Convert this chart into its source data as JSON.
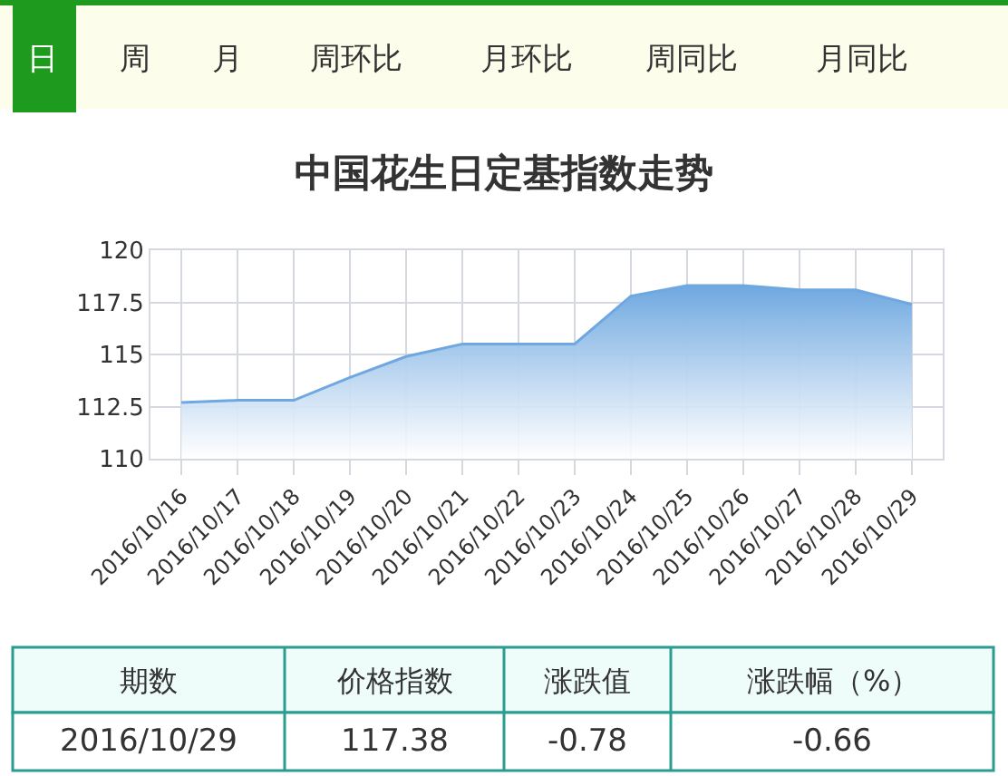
{
  "chart_data": {
    "type": "area",
    "title": "中国花生日定基指数走势",
    "categories": [
      "2016/10/16",
      "2016/10/17",
      "2016/10/18",
      "2016/10/19",
      "2016/10/20",
      "2016/10/21",
      "2016/10/22",
      "2016/10/23",
      "2016/10/24",
      "2016/10/25",
      "2016/10/26",
      "2016/10/27",
      "2016/10/28",
      "2016/10/29"
    ],
    "series": [
      {
        "color": "#6fa8e0",
        "values": [
          112.7,
          112.8,
          112.8,
          113.9,
          114.9,
          115.5,
          115.5,
          115.5,
          117.8,
          118.3,
          118.3,
          118.1,
          118.1,
          117.4
        ]
      }
    ],
    "ylim": [
      110,
      120
    ],
    "yticks": [
      110,
      112.5,
      115,
      117.5,
      120
    ],
    "grid": true,
    "legend": false,
    "annotations": [
      "日",
      "周",
      "月",
      "周环比",
      "月环比",
      "周同比",
      "月同比",
      "期数",
      "价格指数",
      "涨跌值",
      "涨跌幅（%）",
      "2016/10/29",
      "117.38",
      "-0.78",
      "-0.66"
    ]
  }
}
